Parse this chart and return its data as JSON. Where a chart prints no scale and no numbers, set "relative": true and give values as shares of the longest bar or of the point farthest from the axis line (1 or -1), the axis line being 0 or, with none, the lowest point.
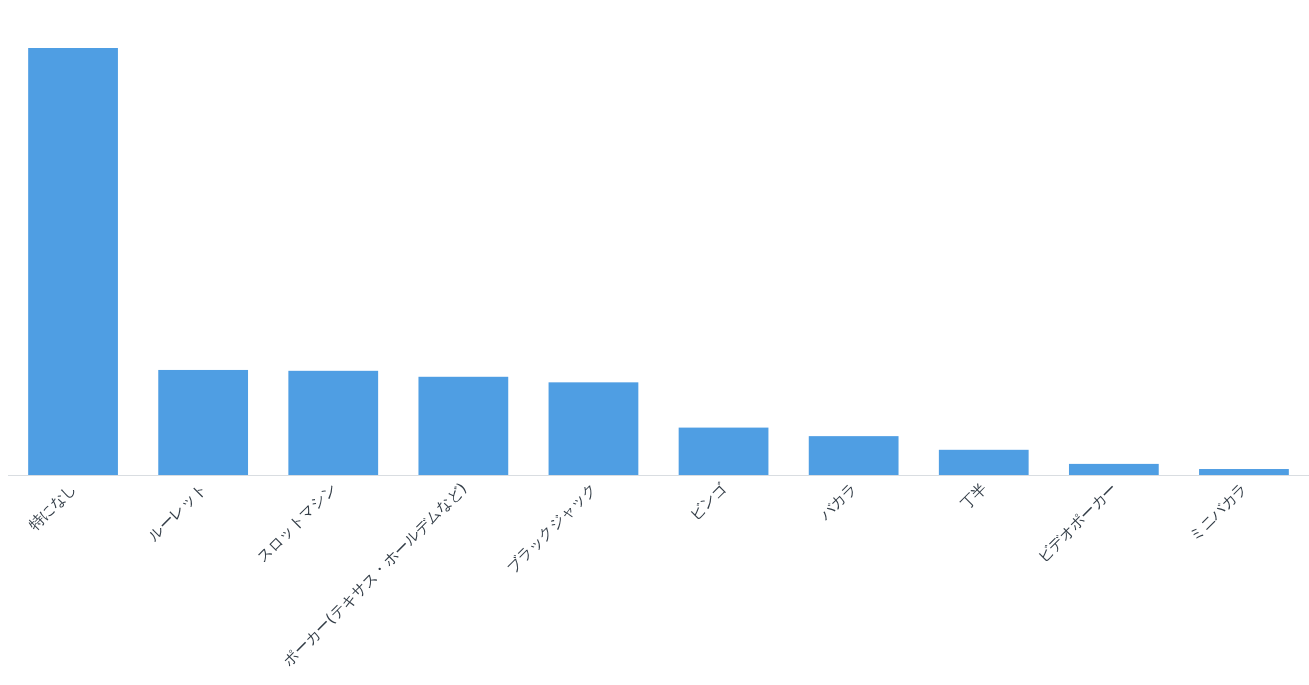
{
  "chart_data": {
    "type": "bar",
    "relative": true,
    "categories": [
      "特になし",
      "ルーレット",
      "スロットマシン",
      "ポーカー(テキサス・ホールデムなど)",
      "ブラックジャック",
      "ビンゴ",
      "バカラ",
      "丁半",
      "ビデオポーカー",
      "ミニバカラ"
    ],
    "values": [
      1,
      0.246,
      0.244,
      0.23,
      0.217,
      0.111,
      0.091,
      0.059,
      0.026,
      0.014
    ],
    "color": "#4f9ee3"
  }
}
